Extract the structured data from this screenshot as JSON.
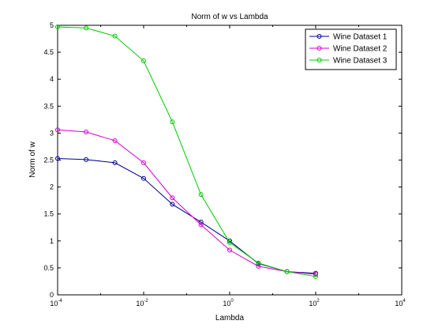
{
  "chart_data": {
    "type": "line",
    "title": "Norm of w vs Lambda",
    "xlabel": "Lambda",
    "ylabel": "Norm of w",
    "xscale": "log",
    "xlim": [
      0.0001,
      10000
    ],
    "ylim": [
      0,
      5
    ],
    "x_ticks": [
      {
        "value": 0.0001,
        "base": "10",
        "exp": "-4"
      },
      {
        "value": 0.01,
        "base": "10",
        "exp": "-2"
      },
      {
        "value": 1,
        "base": "10",
        "exp": "0"
      },
      {
        "value": 100,
        "base": "10",
        "exp": "2"
      },
      {
        "value": 10000,
        "base": "10",
        "exp": "4"
      }
    ],
    "y_ticks": [
      "0",
      "0.5",
      "1",
      "1.5",
      "2",
      "2.5",
      "3",
      "3.5",
      "4",
      "4.5",
      "5"
    ],
    "grid": false,
    "legend_position": "top-right",
    "x": [
      0.0001,
      0.00046,
      0.00215,
      0.01,
      0.0464,
      0.215,
      1,
      4.64,
      21.5,
      100
    ],
    "series": [
      {
        "name": "Wine Dataset 1",
        "color": "#00008b",
        "values": [
          2.53,
          2.51,
          2.45,
          2.16,
          1.68,
          1.35,
          1.0,
          0.58,
          0.43,
          0.4
        ]
      },
      {
        "name": "Wine Dataset 2",
        "color": "#d400d4",
        "values": [
          3.06,
          3.02,
          2.86,
          2.45,
          1.8,
          1.3,
          0.83,
          0.53,
          0.43,
          0.38
        ]
      },
      {
        "name": "Wine Dataset 3",
        "color": "#00c800",
        "values": [
          4.97,
          4.95,
          4.8,
          4.34,
          3.21,
          1.86,
          0.97,
          0.59,
          0.43,
          0.34
        ]
      }
    ]
  }
}
